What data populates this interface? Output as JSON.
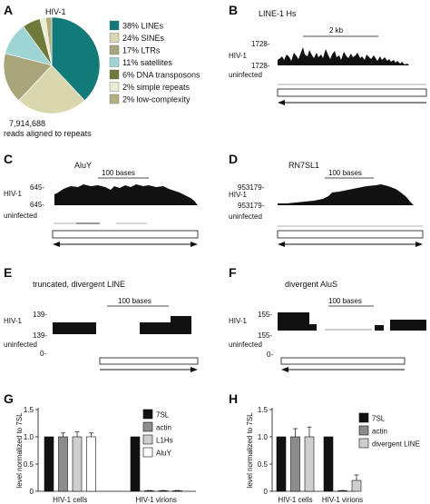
{
  "panels": {
    "A": {
      "label": "A",
      "title": "HIV-1",
      "reads_count": "7,914,688",
      "reads_caption": "reads aligned to repeats"
    },
    "B": {
      "label": "B",
      "title": "LINE-1 Hs",
      "scale": "2 kb",
      "top_value": "1728-",
      "bottom_value": "1728-",
      "top_track": "HIV-1",
      "bottom_track": "uninfected"
    },
    "C": {
      "label": "C",
      "title": "AluY",
      "scale": "100 bases",
      "top_value": "645-",
      "bottom_value": "645-",
      "top_track": "HIV-1",
      "bottom_track": "uninfected"
    },
    "D": {
      "label": "D",
      "title": "RN7SL1",
      "scale": "100 bases",
      "top_value": "953179-",
      "bottom_value": "953179-",
      "top_track": "HIV-1",
      "bottom_track": "uninfected"
    },
    "E": {
      "label": "E",
      "title": "truncated, divergent LINE",
      "scale": "100 bases",
      "top_value": "139-",
      "bottom_value": "139-",
      "zero_value": "0-",
      "top_track": "HIV-1",
      "bottom_track": "uninfected"
    },
    "F": {
      "label": "F",
      "title": "divergent AluS",
      "scale": "100 bases",
      "top_value": "155-",
      "bottom_value": "155-",
      "zero_value": "0-",
      "top_track": "HIV-1",
      "bottom_track": "uninfected"
    },
    "G": {
      "label": "G"
    },
    "H": {
      "label": "H"
    }
  },
  "chart_data": [
    {
      "id": "A",
      "type": "pie",
      "categories": [
        "LINEs",
        "SINEs",
        "LTRs",
        "satellites",
        "DNA transposons",
        "simple repeats",
        "low-complexity"
      ],
      "legend_labels": [
        "38% LINEs",
        "24% SINEs",
        "17% LTRs",
        "11% satellites",
        "6% DNA transposons",
        "2% simple repeats",
        "2% low-complexity"
      ],
      "values": [
        38,
        24,
        17,
        11,
        6,
        2,
        2
      ],
      "colors": [
        "#127a78",
        "#d9d7ad",
        "#a9a57a",
        "#9fd4d4",
        "#6f7a3a",
        "#ecebd3",
        "#b3ae7e"
      ],
      "title": "HIV-1",
      "legend_position": "right"
    },
    {
      "id": "G",
      "type": "bar",
      "ylabel": "level normalized to 7SL",
      "ylim": [
        0,
        1.5
      ],
      "yticks": [
        0,
        0.5,
        1.0,
        1.5
      ],
      "yticklabels": [
        "0",
        "0.5",
        "1.0",
        "1.5"
      ],
      "categories": [
        "HIV-1 cells",
        "HIV-1 virions"
      ],
      "series": [
        {
          "name": "7SL",
          "color": "#111111",
          "values": [
            1.0,
            1.0
          ],
          "errors": [
            0,
            0
          ]
        },
        {
          "name": "actin",
          "color": "#8c8c8c",
          "values": [
            1.0,
            0.01
          ],
          "errors": [
            0.07,
            0.005
          ]
        },
        {
          "name": "L1Hs",
          "color": "#cfcfcf",
          "values": [
            1.0,
            0.01
          ],
          "errors": [
            0.09,
            0.005
          ]
        },
        {
          "name": "AluY",
          "color": "#ffffff",
          "values": [
            1.0,
            0.01
          ],
          "errors": [
            0.07,
            0.005
          ]
        }
      ],
      "legend_position": "right"
    },
    {
      "id": "H",
      "type": "bar",
      "ylabel": "level normalized to 7SL",
      "ylim": [
        0,
        1.5
      ],
      "yticks": [
        0,
        0.5,
        1.0,
        1.5
      ],
      "yticklabels": [
        "0",
        "0.5",
        "1.0",
        "1.5"
      ],
      "categories": [
        "HIV-1 cells",
        "HIV-1 virions"
      ],
      "series": [
        {
          "name": "7SL",
          "color": "#111111",
          "values": [
            1.0,
            1.0
          ],
          "errors": [
            0,
            0
          ]
        },
        {
          "name": "actin",
          "color": "#8c8c8c",
          "values": [
            1.0,
            0.01
          ],
          "errors": [
            0.15,
            0.005
          ]
        },
        {
          "name": "divergent LINE",
          "color": "#cfcfcf",
          "values": [
            1.0,
            0.2
          ],
          "errors": [
            0.18,
            0.1
          ]
        }
      ],
      "legend_position": "right"
    }
  ]
}
